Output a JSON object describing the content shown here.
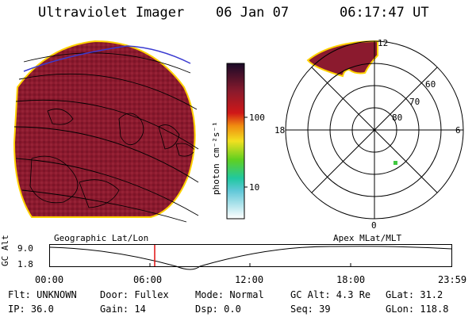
{
  "header": {
    "title": "Ultraviolet Imager",
    "date": "06 Jan 07",
    "time": "06:17:47 UT"
  },
  "colorbar": {
    "label": "photon cm⁻²s⁻¹",
    "ticks": [
      "100",
      "10"
    ]
  },
  "polar_plot": {
    "mlt_labels": {
      "top": "12",
      "left": "18",
      "right": "6",
      "bottom": "0"
    },
    "lat_labels": [
      "60",
      "70",
      "80"
    ]
  },
  "footer_labels": {
    "left": "Geographic Lat/Lon",
    "right": "Apex MLat/MLT"
  },
  "timeline": {
    "ylabel": "GC Alt",
    "y_ticks": [
      "9.0",
      "1.8"
    ],
    "x_ticks": [
      "00:00",
      "06:00",
      "12:00",
      "18:00",
      "23:59"
    ],
    "marker_time": "06:17"
  },
  "status": {
    "flt": "Flt: UNKNOWN",
    "door": "Door: Fullex",
    "mode": "Mode: Normal",
    "gc_alt": "GC Alt: 4.3 Re",
    "glat": "GLat: 31.2",
    "ip": "IP: 36.0",
    "gain": "Gain: 14",
    "dsp": "Dsp:    0.0",
    "seq": "Seq: 39",
    "glon": "GLon: 118.8"
  },
  "colors": {
    "image_fill": "#8b1a2e",
    "limb": "#ffd200",
    "marker": "#e01010",
    "overlay": "#3a3ad0"
  }
}
